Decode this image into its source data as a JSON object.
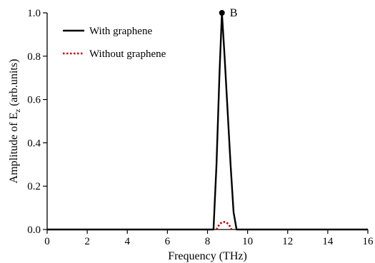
{
  "chart_data": {
    "type": "line",
    "xlabel": "Frequency (THz)",
    "ylabel_main": "Amplitude of E",
    "ylabel_sub": "z",
    "ylabel_tail": " (arb.units)",
    "xlim": [
      0,
      16
    ],
    "ylim": [
      0,
      1.0
    ],
    "x_ticks": [
      0,
      2,
      4,
      6,
      8,
      10,
      12,
      14,
      16
    ],
    "y_ticks": [
      0.0,
      0.2,
      0.4,
      0.6,
      0.8,
      1.0
    ],
    "x_tick_labels": [
      "0",
      "2",
      "4",
      "6",
      "8",
      "10",
      "12",
      "14",
      "16"
    ],
    "y_tick_labels": [
      "0.0",
      "0.2",
      "0.4",
      "0.6",
      "0.8",
      "1.0"
    ],
    "series": [
      {
        "name": "With graphene",
        "color": "#000000",
        "style": "solid",
        "x": [
          0,
          8.3,
          8.45,
          8.6,
          8.72,
          8.85,
          9.0,
          9.15,
          9.3,
          9.45,
          16
        ],
        "y": [
          0,
          0,
          0.3,
          0.72,
          1.0,
          0.8,
          0.55,
          0.3,
          0.08,
          0,
          0
        ]
      },
      {
        "name": "Without graphene",
        "color": "#cc0000",
        "style": "dotted",
        "x": [
          8.45,
          8.6,
          8.75,
          8.9,
          9.05,
          9.2
        ],
        "y": [
          0.0,
          0.025,
          0.035,
          0.035,
          0.025,
          0.0
        ]
      }
    ],
    "annotations": [
      {
        "text": "B",
        "x": 8.72,
        "y": 1.0
      }
    ],
    "legend_position": "top-left",
    "grid": false
  }
}
